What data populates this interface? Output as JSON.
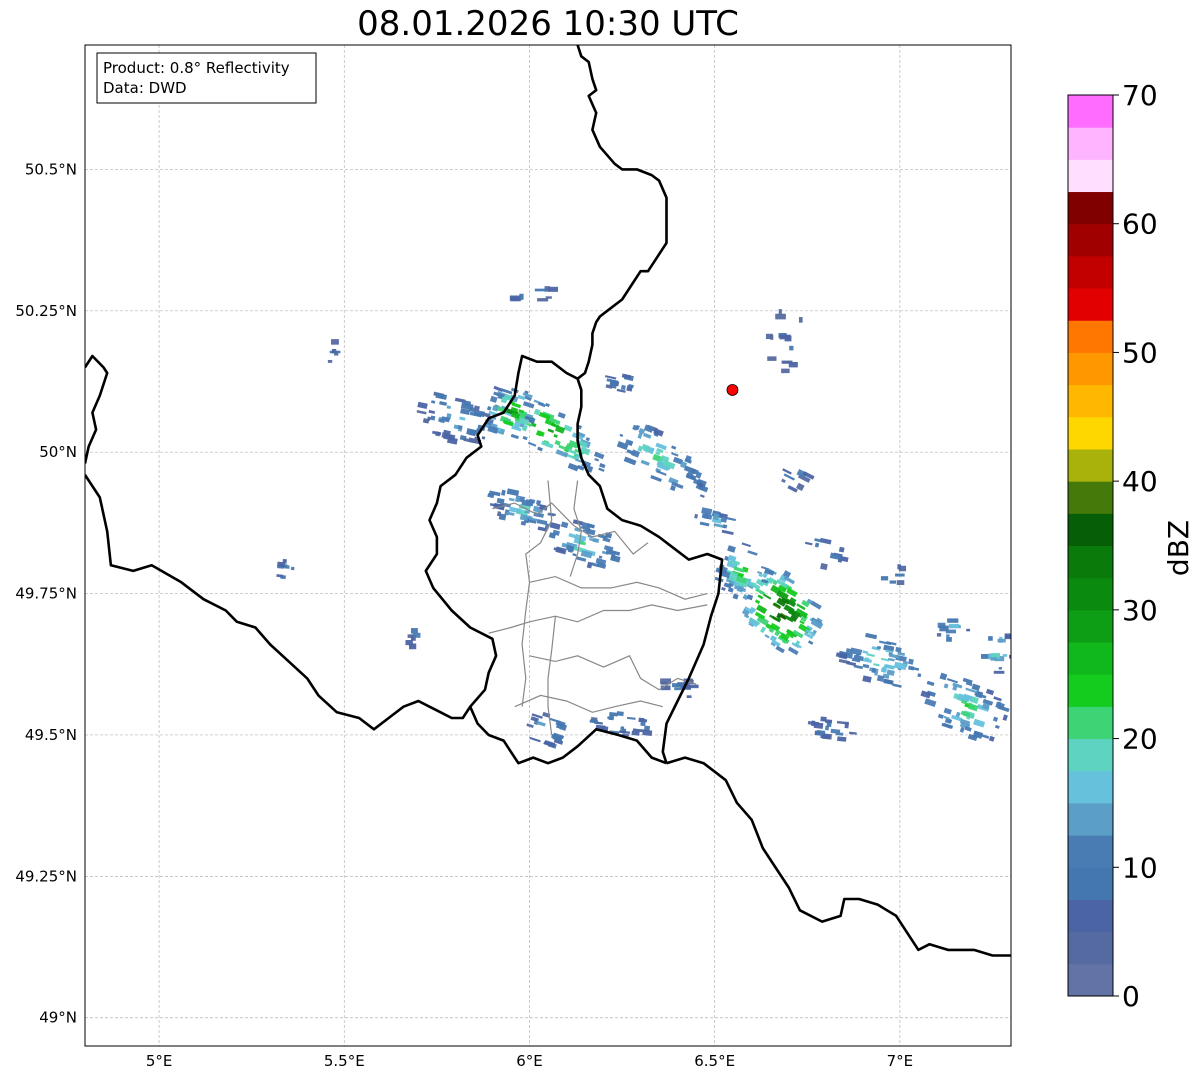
{
  "title": "08.01.2026 10:30 UTC",
  "info": {
    "product": "Product: 0.8° Reflectivity",
    "data": "Data: DWD"
  },
  "map": {
    "lon_range": [
      4.8,
      7.3
    ],
    "lat_range": [
      48.95,
      50.72
    ],
    "lon_ticks": [
      {
        "value": 5.0,
        "label": "5°E"
      },
      {
        "value": 5.5,
        "label": "5.5°E"
      },
      {
        "value": 6.0,
        "label": "6°E"
      },
      {
        "value": 6.5,
        "label": "6.5°E"
      },
      {
        "value": 7.0,
        "label": "7°E"
      }
    ],
    "lat_ticks": [
      {
        "value": 50.5,
        "label": "50.5°N"
      },
      {
        "value": 50.25,
        "label": "50.25°N"
      },
      {
        "value": 50.0,
        "label": "50°N"
      },
      {
        "value": 49.75,
        "label": "49.75°N"
      },
      {
        "value": 49.5,
        "label": "49.5°N"
      },
      {
        "value": 49.25,
        "label": "49.25°N"
      },
      {
        "value": 49.0,
        "label": "49°N"
      }
    ],
    "grid": true,
    "radar_site": {
      "lon": 6.548,
      "lat": 50.11,
      "color": "#ff0000"
    }
  },
  "colorbar": {
    "label": "dBZ",
    "min": 0,
    "max": 70,
    "step": 2.5,
    "ticks": [
      {
        "value": 0,
        "label": "0"
      },
      {
        "value": 10,
        "label": "10"
      },
      {
        "value": 20,
        "label": "20"
      },
      {
        "value": 30,
        "label": "30"
      },
      {
        "value": 40,
        "label": "40"
      },
      {
        "value": 50,
        "label": "50"
      },
      {
        "value": 60,
        "label": "60"
      },
      {
        "value": 70,
        "label": "70"
      }
    ],
    "colors": [
      "#6473a6",
      "#556aa0",
      "#4b64a5",
      "#4477b0",
      "#4a7cb4",
      "#5b9ec8",
      "#66c1dc",
      "#5ed3c2",
      "#3dd475",
      "#14cc1e",
      "#11b81b",
      "#0e9e15",
      "#0a8a0f",
      "#0a7a0b",
      "#065f06",
      "#457a0a",
      "#a9b20b",
      "#ffd700",
      "#ffb700",
      "#ff9700",
      "#ff7700",
      "#e30000",
      "#c30000",
      "#a00000",
      "#800000",
      "#ffdfff",
      "#ffb4ff",
      "#ff6cff",
      "#ea37ea"
    ]
  },
  "borders": {
    "country": [
      [
        [
          6.13,
          50.72
        ],
        [
          6.14,
          50.7
        ],
        [
          6.16,
          50.69
        ],
        [
          6.17,
          50.66
        ],
        [
          6.18,
          50.64
        ],
        [
          6.16,
          50.63
        ],
        [
          6.18,
          50.6
        ],
        [
          6.17,
          50.57
        ],
        [
          6.19,
          50.54
        ],
        [
          6.23,
          50.51
        ],
        [
          6.25,
          50.5
        ],
        [
          6.29,
          50.5
        ],
        [
          6.33,
          50.49
        ],
        [
          6.35,
          50.48
        ],
        [
          6.37,
          50.45
        ],
        [
          6.37,
          50.42
        ],
        [
          6.37,
          50.37
        ],
        [
          6.34,
          50.34
        ],
        [
          6.32,
          50.32
        ],
        [
          6.3,
          50.32
        ],
        [
          6.28,
          50.3
        ],
        [
          6.25,
          50.27
        ],
        [
          6.21,
          50.25
        ],
        [
          6.19,
          50.24
        ],
        [
          6.18,
          50.23
        ],
        [
          6.17,
          50.21
        ],
        [
          6.17,
          50.19
        ],
        [
          6.16,
          50.16
        ],
        [
          6.15,
          50.14
        ],
        [
          6.13,
          50.13
        ],
        [
          6.1,
          50.14
        ],
        [
          6.06,
          50.16
        ],
        [
          6.02,
          50.16
        ],
        [
          5.98,
          50.17
        ],
        [
          5.97,
          50.14
        ],
        [
          5.96,
          50.1
        ],
        [
          5.93,
          50.07
        ],
        [
          5.89,
          50.06
        ],
        [
          5.86,
          50.03
        ],
        [
          5.87,
          50.01
        ],
        [
          5.83,
          49.99
        ],
        [
          5.8,
          49.96
        ],
        [
          5.76,
          49.94
        ],
        [
          5.75,
          49.91
        ],
        [
          5.73,
          49.88
        ],
        [
          5.75,
          49.85
        ],
        [
          5.75,
          49.82
        ],
        [
          5.72,
          49.79
        ],
        [
          5.74,
          49.76
        ],
        [
          5.79,
          49.72
        ],
        [
          5.84,
          49.69
        ],
        [
          5.9,
          49.67
        ],
        [
          5.91,
          49.64
        ],
        [
          5.89,
          49.61
        ],
        [
          5.88,
          49.58
        ],
        [
          5.84,
          49.55
        ],
        [
          5.82,
          49.53
        ],
        [
          5.79,
          49.53
        ],
        [
          5.76,
          49.54
        ],
        [
          5.73,
          49.55
        ],
        [
          5.7,
          49.56
        ],
        [
          5.66,
          49.55
        ],
        [
          5.62,
          49.53
        ],
        [
          5.58,
          49.51
        ],
        [
          5.54,
          49.53
        ],
        [
          5.48,
          49.54
        ],
        [
          5.43,
          49.57
        ],
        [
          5.4,
          49.6
        ],
        [
          5.35,
          49.63
        ],
        [
          5.3,
          49.66
        ],
        [
          5.26,
          49.69
        ],
        [
          5.21,
          49.7
        ],
        [
          5.18,
          49.72
        ],
        [
          5.12,
          49.74
        ],
        [
          5.06,
          49.77
        ],
        [
          4.98,
          49.8
        ],
        [
          4.93,
          49.79
        ],
        [
          4.87,
          49.8
        ],
        [
          4.86,
          49.86
        ],
        [
          4.84,
          49.92
        ],
        [
          4.81,
          49.95
        ],
        [
          4.8,
          49.96
        ]
      ],
      [
        [
          4.8,
          50.15
        ],
        [
          4.82,
          50.17
        ],
        [
          4.85,
          50.15
        ],
        [
          4.86,
          50.14
        ],
        [
          4.84,
          50.1
        ],
        [
          4.82,
          50.07
        ],
        [
          4.83,
          50.04
        ],
        [
          4.81,
          50.01
        ],
        [
          4.8,
          49.98
        ]
      ],
      [
        [
          6.37,
          49.45
        ],
        [
          6.36,
          49.47
        ],
        [
          6.37,
          49.52
        ],
        [
          6.4,
          49.56
        ],
        [
          6.43,
          49.6
        ],
        [
          6.47,
          49.66
        ],
        [
          6.49,
          49.71
        ],
        [
          6.51,
          49.75
        ],
        [
          6.52,
          49.81
        ],
        [
          6.48,
          49.82
        ],
        [
          6.43,
          49.81
        ],
        [
          6.39,
          49.83
        ],
        [
          6.35,
          49.85
        ],
        [
          6.3,
          49.87
        ],
        [
          6.25,
          49.88
        ],
        [
          6.21,
          49.9
        ],
        [
          6.19,
          49.94
        ],
        [
          6.16,
          49.96
        ],
        [
          6.14,
          49.99
        ],
        [
          6.13,
          50.02
        ],
        [
          6.13,
          50.05
        ],
        [
          6.14,
          50.08
        ],
        [
          6.14,
          50.11
        ],
        [
          6.13,
          50.13
        ]
      ],
      [
        [
          6.37,
          49.45
        ],
        [
          6.33,
          49.46
        ],
        [
          6.29,
          49.49
        ],
        [
          6.24,
          49.5
        ],
        [
          6.18,
          49.51
        ],
        [
          6.13,
          49.48
        ],
        [
          6.09,
          49.46
        ],
        [
          6.05,
          49.45
        ],
        [
          6.01,
          49.46
        ],
        [
          5.97,
          49.45
        ],
        [
          5.93,
          49.49
        ],
        [
          5.89,
          49.5
        ],
        [
          5.86,
          49.52
        ],
        [
          5.84,
          49.55
        ]
      ],
      [
        [
          6.37,
          49.45
        ],
        [
          6.42,
          49.46
        ],
        [
          6.47,
          49.45
        ],
        [
          6.53,
          49.42
        ],
        [
          6.56,
          49.38
        ],
        [
          6.6,
          49.35
        ],
        [
          6.63,
          49.3
        ],
        [
          6.66,
          49.27
        ],
        [
          6.7,
          49.23
        ],
        [
          6.73,
          49.19
        ],
        [
          6.79,
          49.17
        ],
        [
          6.84,
          49.18
        ],
        [
          6.85,
          49.21
        ],
        [
          6.89,
          49.21
        ],
        [
          6.94,
          49.2
        ],
        [
          6.99,
          49.18
        ],
        [
          7.02,
          49.15
        ],
        [
          7.05,
          49.12
        ],
        [
          7.08,
          49.13
        ],
        [
          7.13,
          49.12
        ],
        [
          7.2,
          49.12
        ],
        [
          7.25,
          49.11
        ],
        [
          7.3,
          49.11
        ]
      ]
    ],
    "province": [
      [
        [
          5.9,
          49.9
        ],
        [
          5.96,
          49.91
        ],
        [
          6.02,
          49.89
        ],
        [
          6.06,
          49.91
        ],
        [
          6.09,
          49.89
        ],
        [
          6.12,
          49.87
        ],
        [
          6.17,
          49.85
        ],
        [
          6.23,
          49.86
        ],
        [
          6.28,
          49.82
        ],
        [
          6.32,
          49.84
        ]
      ],
      [
        [
          6.05,
          49.95
        ],
        [
          6.06,
          49.88
        ],
        [
          6.03,
          49.84
        ],
        [
          5.99,
          49.82
        ],
        [
          6.0,
          49.77
        ],
        [
          5.99,
          49.72
        ],
        [
          5.98,
          49.66
        ],
        [
          5.99,
          49.6
        ],
        [
          5.98,
          49.55
        ]
      ],
      [
        [
          6.0,
          49.77
        ],
        [
          6.07,
          49.78
        ],
        [
          6.14,
          49.76
        ],
        [
          6.22,
          49.76
        ],
        [
          6.29,
          49.77
        ],
        [
          6.35,
          49.76
        ],
        [
          6.42,
          49.74
        ],
        [
          6.48,
          49.75
        ]
      ],
      [
        [
          5.89,
          49.68
        ],
        [
          5.95,
          49.69
        ],
        [
          6.0,
          49.7
        ],
        [
          6.07,
          49.71
        ],
        [
          6.13,
          49.7
        ],
        [
          6.2,
          49.72
        ],
        [
          6.27,
          49.72
        ],
        [
          6.33,
          49.73
        ],
        [
          6.4,
          49.72
        ],
        [
          6.48,
          49.73
        ]
      ],
      [
        [
          6.0,
          49.64
        ],
        [
          6.07,
          49.63
        ],
        [
          6.13,
          49.64
        ],
        [
          6.2,
          49.62
        ],
        [
          6.27,
          49.64
        ],
        [
          6.3,
          49.6
        ],
        [
          6.35,
          49.58
        ],
        [
          6.4,
          49.6
        ],
        [
          6.45,
          49.59
        ]
      ],
      [
        [
          5.96,
          49.55
        ],
        [
          6.03,
          49.57
        ],
        [
          6.1,
          49.56
        ],
        [
          6.17,
          49.54
        ],
        [
          6.23,
          49.55
        ],
        [
          6.3,
          49.56
        ],
        [
          6.36,
          49.55
        ]
      ],
      [
        [
          6.07,
          49.71
        ],
        [
          6.06,
          49.65
        ],
        [
          6.05,
          49.6
        ],
        [
          6.05,
          49.55
        ],
        [
          6.06,
          49.5
        ]
      ],
      [
        [
          6.13,
          49.95
        ],
        [
          6.12,
          49.9
        ],
        [
          6.14,
          49.86
        ],
        [
          6.13,
          49.82
        ],
        [
          6.11,
          49.78
        ]
      ]
    ]
  },
  "echoes": [
    {
      "lon": 6.05,
      "lat": 50.04,
      "alon": 0.18,
      "alat": 0.04,
      "angle": -35,
      "level": 12,
      "n": 70
    },
    {
      "lon": 5.95,
      "lat": 50.07,
      "alon": 0.06,
      "alat": 0.05,
      "angle": -30,
      "level": 12,
      "n": 40
    },
    {
      "lon": 5.8,
      "lat": 50.06,
      "alon": 0.1,
      "alat": 0.04,
      "angle": -20,
      "level": 6,
      "n": 50
    },
    {
      "lon": 5.98,
      "lat": 49.9,
      "alon": 0.1,
      "alat": 0.03,
      "angle": -20,
      "level": 7,
      "n": 40
    },
    {
      "lon": 6.15,
      "lat": 49.84,
      "alon": 0.1,
      "alat": 0.04,
      "angle": -25,
      "level": 8,
      "n": 45
    },
    {
      "lon": 6.35,
      "lat": 49.99,
      "alon": 0.16,
      "alat": 0.04,
      "angle": -35,
      "level": 8,
      "n": 55
    },
    {
      "lon": 6.25,
      "lat": 50.12,
      "alon": 0.04,
      "alat": 0.02,
      "angle": -20,
      "level": 5,
      "n": 12
    },
    {
      "lon": 6.5,
      "lat": 49.88,
      "alon": 0.06,
      "alat": 0.02,
      "angle": -20,
      "level": 6,
      "n": 15
    },
    {
      "lon": 6.68,
      "lat": 49.72,
      "alon": 0.12,
      "alat": 0.06,
      "angle": -50,
      "level": 16,
      "n": 90
    },
    {
      "lon": 6.58,
      "lat": 49.79,
      "alon": 0.07,
      "alat": 0.05,
      "angle": -30,
      "level": 10,
      "n": 40
    },
    {
      "lon": 6.95,
      "lat": 49.63,
      "alon": 0.12,
      "alat": 0.04,
      "angle": -20,
      "level": 8,
      "n": 55
    },
    {
      "lon": 7.18,
      "lat": 49.55,
      "alon": 0.12,
      "alat": 0.05,
      "angle": -30,
      "level": 9,
      "n": 60
    },
    {
      "lon": 7.27,
      "lat": 49.65,
      "alon": 0.04,
      "alat": 0.04,
      "angle": 0,
      "level": 8,
      "n": 15
    },
    {
      "lon": 7.15,
      "lat": 49.69,
      "alon": 0.05,
      "alat": 0.03,
      "angle": 0,
      "level": 6,
      "n": 10
    },
    {
      "lon": 6.25,
      "lat": 49.52,
      "alon": 0.08,
      "alat": 0.02,
      "angle": -10,
      "level": 6,
      "n": 25
    },
    {
      "lon": 6.05,
      "lat": 49.51,
      "alon": 0.06,
      "alat": 0.03,
      "angle": -30,
      "level": 6,
      "n": 18
    },
    {
      "lon": 6.82,
      "lat": 49.51,
      "alon": 0.07,
      "alat": 0.02,
      "angle": -10,
      "level": 5,
      "n": 18
    },
    {
      "lon": 6.4,
      "lat": 49.58,
      "alon": 0.05,
      "alat": 0.02,
      "angle": 0,
      "level": 4,
      "n": 12
    },
    {
      "lon": 5.35,
      "lat": 49.79,
      "alon": 0.04,
      "alat": 0.02,
      "angle": -10,
      "level": 5,
      "n": 8
    },
    {
      "lon": 5.7,
      "lat": 49.67,
      "alon": 0.03,
      "alat": 0.02,
      "angle": 0,
      "level": 4,
      "n": 6
    },
    {
      "lon": 5.47,
      "lat": 50.17,
      "alon": 0.01,
      "alat": 0.03,
      "angle": 0,
      "level": 4,
      "n": 5
    },
    {
      "lon": 6.7,
      "lat": 50.2,
      "alon": 0.06,
      "alat": 0.06,
      "angle": 0,
      "level": 3,
      "n": 14
    },
    {
      "lon": 6.8,
      "lat": 49.82,
      "alon": 0.06,
      "alat": 0.03,
      "angle": -20,
      "level": 5,
      "n": 10
    },
    {
      "lon": 6.72,
      "lat": 49.96,
      "alon": 0.04,
      "alat": 0.03,
      "angle": -45,
      "level": 4,
      "n": 8
    },
    {
      "lon": 6.98,
      "lat": 49.78,
      "alon": 0.04,
      "alat": 0.02,
      "angle": 0,
      "level": 4,
      "n": 6
    },
    {
      "lon": 6.0,
      "lat": 50.28,
      "alon": 0.12,
      "alat": 0.02,
      "angle": 0,
      "level": 3,
      "n": 8
    }
  ]
}
